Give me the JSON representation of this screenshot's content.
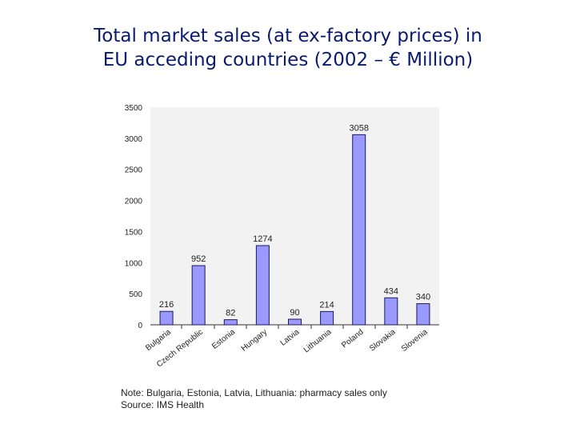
{
  "title": {
    "line1": "Total market sales (at ex-factory prices) in",
    "line2": "EU acceding countries (2002 – € Million)"
  },
  "chart_data": {
    "type": "bar",
    "categories": [
      "Bulgaria",
      "Czech Republic",
      "Estonia",
      "Hungary",
      "Latvia",
      "Lithuania",
      "Poland",
      "Slovakia",
      "Slovenia"
    ],
    "values": [
      216,
      952,
      82,
      1274,
      90,
      214,
      3058,
      434,
      340
    ],
    "ylim": [
      0,
      3500
    ],
    "yticks": [
      0,
      500,
      1000,
      1500,
      2000,
      2500,
      3000,
      3500
    ],
    "legend": "none",
    "bar_color": "#9999ff",
    "plot_background": "#f2f2f2"
  },
  "notes": {
    "line1": "Note: Bulgaria, Estonia, Latvia, Lithuania: pharmacy sales only",
    "line2": "Source: IMS Health"
  }
}
